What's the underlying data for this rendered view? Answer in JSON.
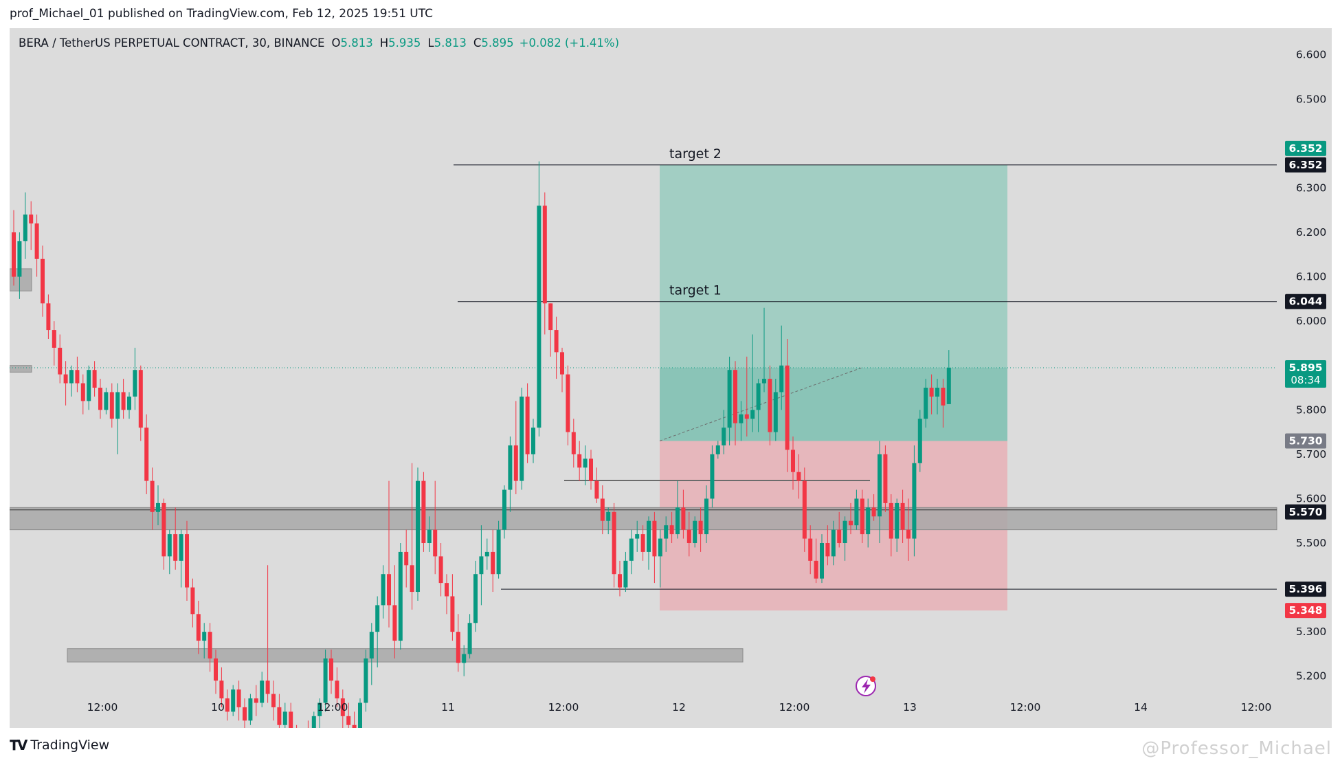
{
  "header": {
    "published": "prof_Michael_01 published on TradingView.com, Feb 12, 2025 19:51 UTC"
  },
  "legend": {
    "symbol": "BERA / TetherUS PERPETUAL CONTRACT, 30, BINANCE",
    "open_label": "O",
    "open": "5.813",
    "high_label": "H",
    "high": "5.935",
    "low_label": "L",
    "low": "5.813",
    "close_label": "C",
    "close": "5.895",
    "change": "+0.082 (+1.41%)"
  },
  "chart_data": {
    "type": "candlestick",
    "y_range": [
      5.15,
      6.66
    ],
    "y_ticks": [
      6.6,
      6.5,
      6.3,
      6.2,
      6.1,
      6.0,
      5.8,
      5.7,
      5.6,
      5.5,
      5.3,
      5.2
    ],
    "x_ticks": [
      "12:00",
      "10",
      "12:00",
      "11",
      "12:00",
      "12",
      "12:00",
      "13",
      "12:00",
      "14",
      "12:00"
    ],
    "price_labels": [
      {
        "value": 6.352,
        "text": "6.352",
        "color": "#089981"
      },
      {
        "value": 6.352,
        "text": "6.352",
        "color": "#131722"
      },
      {
        "value": 6.044,
        "text": "6.044",
        "color": "#131722"
      },
      {
        "value": 5.895,
        "text": "5.895",
        "sub": "08:34",
        "color": "#089981"
      },
      {
        "value": 5.73,
        "text": "5.730",
        "color": "#787b86"
      },
      {
        "value": 5.57,
        "text": "5.570",
        "color": "#131722"
      },
      {
        "value": 5.396,
        "text": "5.396",
        "color": "#131722"
      },
      {
        "value": 5.348,
        "text": "5.348",
        "color": "#f23645"
      }
    ],
    "annotations": [
      {
        "text": "target 2",
        "value": 6.352
      },
      {
        "text": "target 1",
        "value": 6.044
      }
    ],
    "levels": [
      6.352,
      6.044,
      5.641,
      5.396
    ],
    "zones": [
      {
        "top": 5.58,
        "bottom": 5.53
      },
      {
        "top": 5.262,
        "bottom": 5.232
      },
      {
        "top": 6.118,
        "bottom": 6.068
      },
      {
        "top": 5.9,
        "bottom": 5.885
      }
    ],
    "position": {
      "type": "long",
      "entry": 5.73,
      "target": 6.352,
      "stop": 5.348,
      "colors": {
        "profit": "#8fc9bb",
        "loss": "#e8aeb4"
      }
    },
    "candles_ohlc": [
      [
        6.2,
        6.25,
        6.08,
        6.1
      ],
      [
        6.1,
        6.2,
        6.05,
        6.18
      ],
      [
        6.18,
        6.29,
        6.14,
        6.24
      ],
      [
        6.24,
        6.27,
        6.16,
        6.22
      ],
      [
        6.22,
        6.24,
        6.1,
        6.14
      ],
      [
        6.14,
        6.17,
        6.01,
        6.04
      ],
      [
        6.04,
        6.06,
        5.96,
        5.98
      ],
      [
        5.98,
        6.0,
        5.9,
        5.94
      ],
      [
        5.94,
        5.97,
        5.86,
        5.88
      ],
      [
        5.88,
        5.91,
        5.81,
        5.86
      ],
      [
        5.86,
        5.9,
        5.83,
        5.89
      ],
      [
        5.89,
        5.92,
        5.84,
        5.86
      ],
      [
        5.86,
        5.88,
        5.79,
        5.82
      ],
      [
        5.82,
        5.9,
        5.8,
        5.89
      ],
      [
        5.89,
        5.91,
        5.83,
        5.85
      ],
      [
        5.85,
        5.87,
        5.78,
        5.8
      ],
      [
        5.8,
        5.85,
        5.79,
        5.84
      ],
      [
        5.84,
        5.86,
        5.76,
        5.78
      ],
      [
        5.78,
        5.86,
        5.7,
        5.84
      ],
      [
        5.84,
        5.87,
        5.78,
        5.8
      ],
      [
        5.8,
        5.84,
        5.78,
        5.83
      ],
      [
        5.83,
        5.94,
        5.8,
        5.89
      ],
      [
        5.89,
        5.9,
        5.73,
        5.76
      ],
      [
        5.76,
        5.79,
        5.61,
        5.64
      ],
      [
        5.64,
        5.67,
        5.53,
        5.57
      ],
      [
        5.57,
        5.63,
        5.54,
        5.59
      ],
      [
        5.59,
        5.6,
        5.44,
        5.47
      ],
      [
        5.47,
        5.53,
        5.43,
        5.52
      ],
      [
        5.52,
        5.58,
        5.44,
        5.46
      ],
      [
        5.46,
        5.53,
        5.4,
        5.52
      ],
      [
        5.52,
        5.55,
        5.37,
        5.4
      ],
      [
        5.4,
        5.42,
        5.31,
        5.34
      ],
      [
        5.34,
        5.37,
        5.25,
        5.28
      ],
      [
        5.28,
        5.32,
        5.24,
        5.3
      ],
      [
        5.3,
        5.32,
        5.21,
        5.24
      ],
      [
        5.24,
        5.26,
        5.16,
        5.19
      ],
      [
        5.19,
        5.22,
        5.13,
        5.15
      ],
      [
        5.15,
        5.17,
        5.1,
        5.12
      ],
      [
        5.12,
        5.18,
        5.11,
        5.17
      ],
      [
        5.17,
        5.19,
        5.1,
        5.13
      ],
      [
        5.13,
        5.15,
        5.08,
        5.1
      ],
      [
        5.1,
        5.16,
        5.09,
        5.15
      ],
      [
        5.15,
        5.18,
        5.11,
        5.14
      ],
      [
        5.14,
        5.21,
        5.13,
        5.19
      ],
      [
        5.19,
        5.45,
        5.14,
        5.16
      ],
      [
        5.16,
        5.19,
        5.1,
        5.13
      ],
      [
        5.13,
        5.16,
        5.07,
        5.09
      ],
      [
        5.09,
        5.14,
        5.06,
        5.12
      ],
      [
        5.12,
        5.14,
        5.05,
        5.07
      ],
      [
        5.07,
        5.09,
        5.02,
        5.04
      ],
      [
        5.04,
        5.08,
        5.02,
        5.06
      ],
      [
        5.06,
        5.1,
        5.03,
        5.05
      ],
      [
        5.05,
        5.12,
        5.04,
        5.11
      ],
      [
        5.11,
        5.15,
        5.08,
        5.14
      ],
      [
        5.14,
        5.26,
        5.12,
        5.24
      ],
      [
        5.24,
        5.26,
        5.16,
        5.19
      ],
      [
        5.19,
        5.22,
        5.13,
        5.15
      ],
      [
        5.15,
        5.17,
        5.08,
        5.11
      ],
      [
        5.11,
        5.14,
        5.06,
        5.09
      ],
      [
        5.09,
        5.12,
        5.05,
        5.07
      ],
      [
        5.07,
        5.15,
        5.05,
        5.14
      ],
      [
        5.14,
        5.26,
        5.12,
        5.24
      ],
      [
        5.24,
        5.32,
        5.18,
        5.3
      ],
      [
        5.3,
        5.38,
        5.22,
        5.36
      ],
      [
        5.36,
        5.45,
        5.33,
        5.43
      ],
      [
        5.43,
        5.64,
        5.31,
        5.36
      ],
      [
        5.36,
        5.45,
        5.24,
        5.28
      ],
      [
        5.28,
        5.5,
        5.26,
        5.48
      ],
      [
        5.48,
        5.53,
        5.4,
        5.45
      ],
      [
        5.45,
        5.68,
        5.35,
        5.39
      ],
      [
        5.39,
        5.67,
        5.37,
        5.64
      ],
      [
        5.64,
        5.66,
        5.48,
        5.5
      ],
      [
        5.5,
        5.56,
        5.48,
        5.53
      ],
      [
        5.53,
        5.64,
        5.43,
        5.47
      ],
      [
        5.47,
        5.5,
        5.38,
        5.41
      ],
      [
        5.41,
        5.43,
        5.34,
        5.38
      ],
      [
        5.38,
        5.43,
        5.28,
        5.3
      ],
      [
        5.3,
        5.34,
        5.21,
        5.23
      ],
      [
        5.23,
        5.27,
        5.2,
        5.25
      ],
      [
        5.25,
        5.34,
        5.24,
        5.32
      ],
      [
        5.32,
        5.46,
        5.3,
        5.43
      ],
      [
        5.43,
        5.54,
        5.36,
        5.47
      ],
      [
        5.47,
        5.51,
        5.44,
        5.48
      ],
      [
        5.48,
        5.53,
        5.39,
        5.43
      ],
      [
        5.43,
        5.55,
        5.42,
        5.53
      ],
      [
        5.53,
        5.63,
        5.51,
        5.62
      ],
      [
        5.62,
        5.74,
        5.57,
        5.72
      ],
      [
        5.72,
        5.82,
        5.61,
        5.64
      ],
      [
        5.64,
        5.85,
        5.62,
        5.83
      ],
      [
        5.83,
        5.86,
        5.68,
        5.7
      ],
      [
        5.7,
        5.78,
        5.68,
        5.76
      ],
      [
        5.76,
        6.36,
        5.74,
        6.26
      ],
      [
        6.26,
        6.29,
        5.97,
        6.04
      ],
      [
        6.04,
        6.04,
        5.92,
        5.98
      ],
      [
        5.98,
        6.01,
        5.87,
        5.93
      ],
      [
        5.93,
        5.94,
        5.84,
        5.88
      ],
      [
        5.88,
        5.9,
        5.72,
        5.75
      ],
      [
        5.75,
        5.78,
        5.67,
        5.7
      ],
      [
        5.7,
        5.73,
        5.64,
        5.67
      ],
      [
        5.67,
        5.72,
        5.63,
        5.69
      ],
      [
        5.69,
        5.71,
        5.62,
        5.64
      ],
      [
        5.64,
        5.67,
        5.59,
        5.6
      ],
      [
        5.6,
        5.63,
        5.52,
        5.55
      ],
      [
        5.55,
        5.58,
        5.52,
        5.57
      ],
      [
        5.57,
        5.59,
        5.4,
        5.43
      ],
      [
        5.43,
        5.46,
        5.38,
        5.4
      ],
      [
        5.4,
        5.48,
        5.39,
        5.46
      ],
      [
        5.46,
        5.53,
        5.43,
        5.51
      ],
      [
        5.51,
        5.55,
        5.48,
        5.52
      ],
      [
        5.52,
        5.54,
        5.46,
        5.48
      ],
      [
        5.48,
        5.56,
        5.44,
        5.55
      ],
      [
        5.55,
        5.57,
        5.41,
        5.47
      ],
      [
        5.47,
        5.53,
        5.4,
        5.51
      ],
      [
        5.51,
        5.56,
        5.48,
        5.54
      ],
      [
        5.54,
        5.57,
        5.5,
        5.52
      ],
      [
        5.52,
        5.64,
        5.51,
        5.58
      ],
      [
        5.58,
        5.62,
        5.51,
        5.53
      ],
      [
        5.53,
        5.57,
        5.47,
        5.5
      ],
      [
        5.5,
        5.56,
        5.49,
        5.55
      ],
      [
        5.55,
        5.58,
        5.48,
        5.52
      ],
      [
        5.52,
        5.63,
        5.5,
        5.6
      ],
      [
        5.6,
        5.72,
        5.58,
        5.7
      ],
      [
        5.7,
        5.73,
        5.69,
        5.72
      ],
      [
        5.72,
        5.8,
        5.7,
        5.76
      ],
      [
        5.76,
        5.92,
        5.72,
        5.89
      ],
      [
        5.89,
        5.91,
        5.72,
        5.77
      ],
      [
        5.77,
        5.82,
        5.73,
        5.79
      ],
      [
        5.79,
        5.92,
        5.74,
        5.78
      ],
      [
        5.78,
        5.97,
        5.75,
        5.8
      ],
      [
        5.8,
        5.87,
        5.75,
        5.86
      ],
      [
        5.86,
        6.03,
        5.84,
        5.87
      ],
      [
        5.87,
        5.9,
        5.72,
        5.75
      ],
      [
        5.75,
        5.87,
        5.73,
        5.84
      ],
      [
        5.84,
        5.99,
        5.8,
        5.9
      ],
      [
        5.9,
        5.96,
        5.66,
        5.71
      ],
      [
        5.71,
        5.74,
        5.62,
        5.66
      ],
      [
        5.66,
        5.7,
        5.6,
        5.64
      ],
      [
        5.64,
        5.67,
        5.48,
        5.51
      ],
      [
        5.51,
        5.54,
        5.43,
        5.46
      ],
      [
        5.46,
        5.51,
        5.41,
        5.42
      ],
      [
        5.42,
        5.52,
        5.41,
        5.5
      ],
      [
        5.5,
        5.54,
        5.45,
        5.47
      ],
      [
        5.47,
        5.55,
        5.45,
        5.53
      ],
      [
        5.53,
        5.57,
        5.49,
        5.5
      ],
      [
        5.5,
        5.56,
        5.46,
        5.55
      ],
      [
        5.55,
        5.59,
        5.52,
        5.54
      ],
      [
        5.54,
        5.62,
        5.53,
        5.6
      ],
      [
        5.6,
        5.62,
        5.5,
        5.52
      ],
      [
        5.52,
        5.6,
        5.49,
        5.58
      ],
      [
        5.58,
        5.61,
        5.55,
        5.56
      ],
      [
        5.56,
        5.73,
        5.5,
        5.7
      ],
      [
        5.7,
        5.72,
        5.57,
        5.59
      ],
      [
        5.59,
        5.61,
        5.47,
        5.51
      ],
      [
        5.51,
        5.6,
        5.48,
        5.59
      ],
      [
        5.59,
        5.62,
        5.5,
        5.53
      ],
      [
        5.53,
        5.6,
        5.46,
        5.51
      ],
      [
        5.51,
        5.72,
        5.47,
        5.68
      ],
      [
        5.68,
        5.8,
        5.66,
        5.78
      ],
      [
        5.78,
        5.87,
        5.76,
        5.85
      ],
      [
        5.85,
        5.88,
        5.79,
        5.83
      ],
      [
        5.83,
        5.87,
        5.79,
        5.85
      ],
      [
        5.85,
        5.87,
        5.76,
        5.81
      ],
      [
        5.813,
        5.935,
        5.813,
        5.895
      ]
    ]
  },
  "footer": {
    "brand": "TradingView",
    "watermark": "@Professor_Michael"
  }
}
